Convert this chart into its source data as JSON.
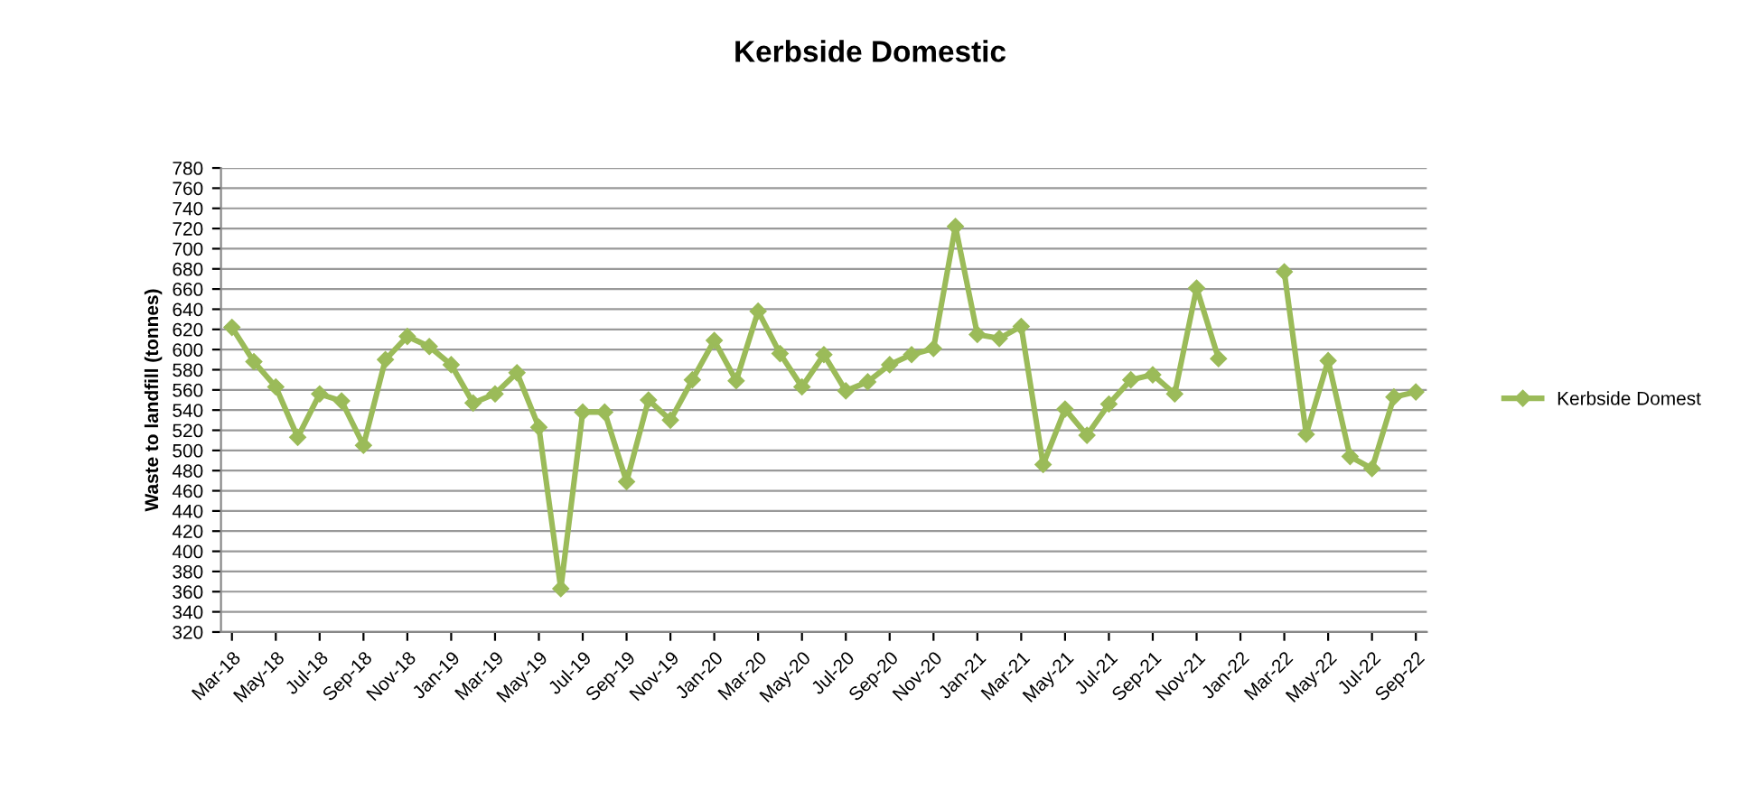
{
  "chart_data": {
    "type": "line",
    "title": "Kerbside Domestic",
    "ylabel": "Waste to landfill (tonnes)",
    "categories": [
      "Mar-18",
      null,
      "May-18",
      null,
      "Jul-18",
      null,
      "Sep-18",
      null,
      "Nov-18",
      null,
      "Jan-19",
      null,
      "Mar-19",
      null,
      "May-19",
      null,
      "Jul-19",
      null,
      "Sep-19",
      null,
      "Nov-19",
      null,
      "Jan-20",
      null,
      "Mar-20",
      null,
      "May-20",
      null,
      "Jul-20",
      null,
      "Sep-20",
      null,
      "Nov-20",
      null,
      "Jan-21",
      null,
      "Mar-21",
      null,
      "May-21",
      null,
      "Jul-21",
      null,
      "Sep-21",
      null,
      "Nov-21",
      null,
      "Jan-22",
      null,
      "Mar-22",
      null,
      "May-22",
      null,
      "Jul-22",
      null,
      "Sep-22"
    ],
    "series": [
      {
        "name": "Kerbside Domest",
        "color": "#9bbb59",
        "values": [
          622,
          588,
          563,
          513,
          556,
          549,
          505,
          590,
          613,
          603,
          585,
          547,
          556,
          577,
          523,
          363,
          538,
          538,
          469,
          550,
          530,
          570,
          609,
          569,
          638,
          596,
          563,
          595,
          559,
          568,
          585,
          595,
          601,
          722,
          615,
          611,
          623,
          486,
          541,
          515,
          546,
          570,
          575,
          556,
          661,
          591,
          null,
          null,
          677,
          516,
          589,
          494,
          482,
          553,
          558
        ]
      }
    ],
    "ylim": [
      320,
      780
    ],
    "yticks": [
      320,
      340,
      360,
      380,
      400,
      420,
      440,
      460,
      480,
      500,
      520,
      540,
      560,
      580,
      600,
      620,
      640,
      660,
      680,
      700,
      720,
      740,
      760,
      780
    ],
    "grid": "y",
    "legend": "right",
    "marker": "diamond",
    "line_style": "solid"
  }
}
